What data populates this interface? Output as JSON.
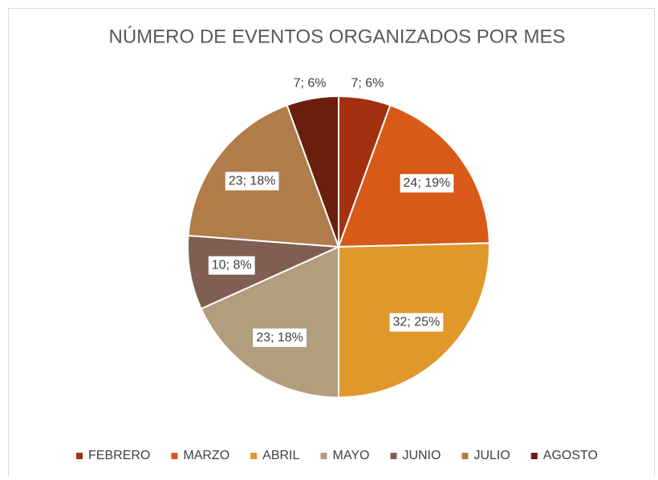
{
  "chart_data": {
    "type": "pie",
    "title": "NÚMERO DE EVENTOS ORGANIZADOS POR MES",
    "categories": [
      "FEBRERO",
      "MARZO",
      "ABRIL",
      "MAYO",
      "JUNIO",
      "JULIO",
      "AGOSTO"
    ],
    "values": [
      7,
      24,
      32,
      23,
      10,
      23,
      7
    ],
    "value_labels": [
      "7; 6%",
      "24; 19%",
      "32; 25%",
      "23; 18%",
      "10; 8%",
      "23; 18%",
      "7; 6%"
    ],
    "colors": [
      "#a3300f",
      "#d75a18",
      "#e0982a",
      "#b29d7e",
      "#7e5f52",
      "#b07d4a",
      "#6a1e0c"
    ],
    "legend": "bottom"
  }
}
